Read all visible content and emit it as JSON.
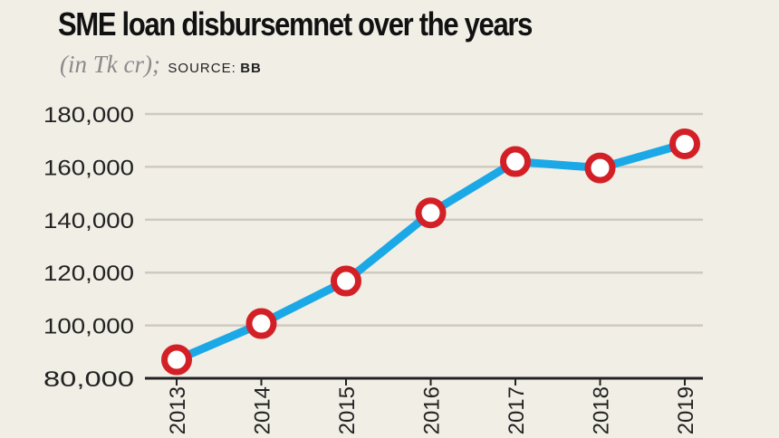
{
  "header": {
    "title": "SME loan disbursemnet over the years",
    "unit": "(in Tk cr);",
    "source_label": "SOURCE:",
    "source_value": "BB"
  },
  "colors": {
    "line": "#1aa9e6",
    "marker_ring": "#d32027",
    "marker_fill": "#ffffff",
    "grid": "#cfcac0",
    "axis": "#222222",
    "background": "#f1eee6"
  },
  "chart_data": {
    "type": "line",
    "title": "SME loan disbursemnet over the years",
    "xlabel": "",
    "ylabel": "",
    "x": [
      "2013",
      "2014",
      "2015",
      "2016",
      "2017",
      "2018",
      "2019"
    ],
    "values": [
      87000,
      100700,
      116800,
      142600,
      162000,
      159600,
      168700
    ],
    "ylim": [
      80000,
      180000
    ],
    "yticks": [
      80000,
      100000,
      120000,
      140000,
      160000,
      180000
    ],
    "ytick_labels": [
      "80,000",
      "100,000",
      "120,000",
      "140,000",
      "160,000",
      "180,000"
    ],
    "grid": true,
    "legend": "none"
  }
}
